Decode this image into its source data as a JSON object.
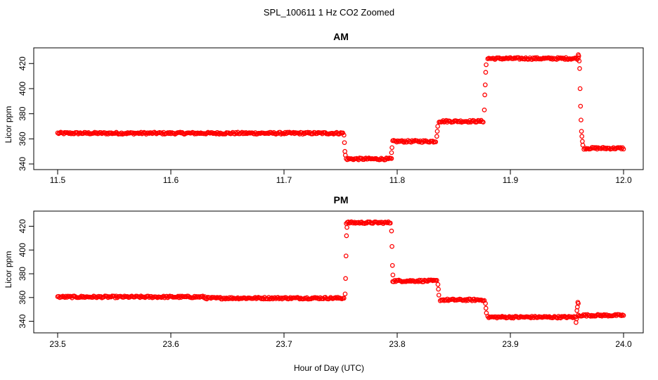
{
  "figure": {
    "title": "SPL_100611  1 Hz CO2 Zoomed",
    "xlabel": "Hour of Day (UTC)"
  },
  "chart_data": [
    {
      "type": "scatter",
      "title": "AM",
      "ylabel": "Licor ppm",
      "xlim": [
        11.5,
        12.0
      ],
      "ylim": [
        340,
        428
      ],
      "x_ticks": [
        11.5,
        11.6,
        11.7,
        11.8,
        11.9,
        12.0
      ],
      "x_tick_labels": [
        "11.5",
        "11.6",
        "11.7",
        "11.8",
        "11.9",
        "12.0"
      ],
      "y_ticks": [
        340,
        360,
        380,
        400,
        420
      ],
      "y_tick_labels": [
        "340",
        "360",
        "380",
        "400",
        "420"
      ],
      "grid": false,
      "marker": "open-circle",
      "color": "#ff0000",
      "segments": [
        {
          "x_start": 11.5,
          "x_end": 11.752,
          "y": 364.5
        },
        {
          "x_start": 11.755,
          "x_end": 11.795,
          "y": 344
        },
        {
          "x_start": 11.796,
          "x_end": 11.834,
          "y": 358
        },
        {
          "x_start": 11.837,
          "x_end": 11.876,
          "y": 374
        },
        {
          "x_start": 11.88,
          "x_end": 11.96,
          "y": 424
        },
        {
          "x_start": 11.965,
          "x_end": 12.0,
          "y": 352.5
        }
      ],
      "transitions": [
        {
          "x": 11.753,
          "y": [
            363,
            357,
            350,
            347
          ]
        },
        {
          "x": 11.795,
          "y": [
            349,
            353
          ]
        },
        {
          "x": 11.835,
          "y": [
            362,
            366,
            370
          ]
        },
        {
          "x": 11.877,
          "y": [
            383,
            395,
            403,
            413,
            419
          ]
        },
        {
          "x": 11.96,
          "y": [
            427,
            426,
            422,
            416,
            400,
            386,
            375,
            366,
            362,
            358,
            355
          ]
        }
      ]
    },
    {
      "type": "scatter",
      "title": "PM",
      "ylabel": "Licor ppm",
      "xlim": [
        23.5,
        24.0
      ],
      "ylim": [
        335,
        428
      ],
      "x_ticks": [
        23.5,
        23.6,
        23.7,
        23.8,
        23.9,
        24.0
      ],
      "x_tick_labels": [
        "23.5",
        "23.6",
        "23.7",
        "23.8",
        "23.9",
        "24.0"
      ],
      "y_ticks": [
        340,
        360,
        380,
        400,
        420
      ],
      "y_tick_labels": [
        "340",
        "360",
        "380",
        "400",
        "420"
      ],
      "grid": false,
      "marker": "open-circle",
      "color": "#ff0000",
      "segments": [
        {
          "x_start": 23.5,
          "x_end": 23.63,
          "y": 360.5
        },
        {
          "x_start": 23.63,
          "x_end": 23.753,
          "y": 359.5
        },
        {
          "x_start": 23.755,
          "x_end": 23.794,
          "y": 423
        },
        {
          "x_start": 23.796,
          "x_end": 23.835,
          "y": 374
        },
        {
          "x_start": 23.838,
          "x_end": 23.877,
          "y": 358
        },
        {
          "x_start": 23.88,
          "x_end": 23.958,
          "y": 343.5
        },
        {
          "x_start": 23.96,
          "x_end": 24.0,
          "y": 345
        }
      ],
      "transitions": [
        {
          "x": 23.754,
          "y": [
            363,
            376,
            395,
            412,
            419
          ]
        },
        {
          "x": 23.795,
          "y": [
            416,
            403,
            387,
            379
          ]
        },
        {
          "x": 23.836,
          "y": [
            371,
            367,
            362
          ]
        },
        {
          "x": 23.878,
          "y": [
            355,
            351,
            347
          ]
        },
        {
          "x": 23.958,
          "y": [
            339,
            342,
            349,
            352,
            356,
            355
          ]
        }
      ]
    }
  ]
}
